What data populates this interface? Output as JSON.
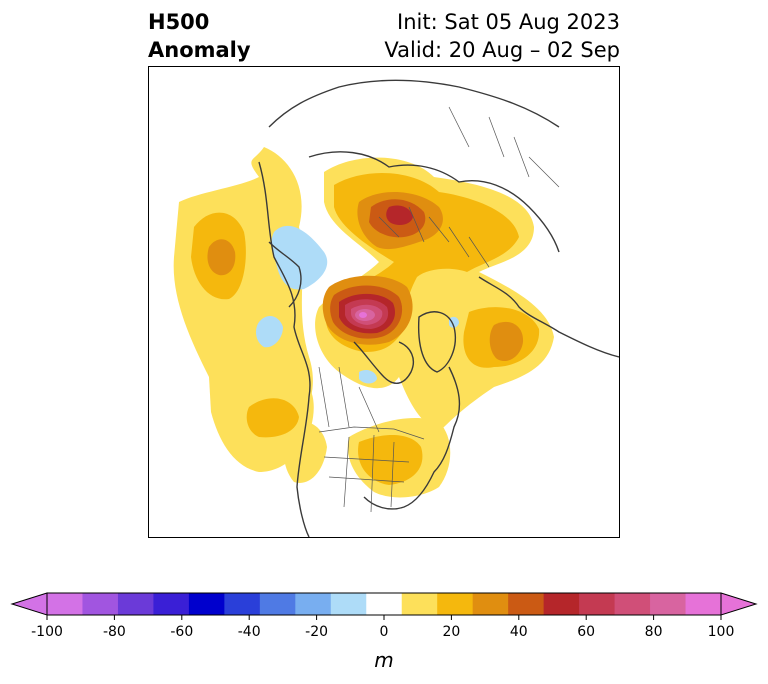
{
  "title": {
    "left_line1": "H500",
    "left_line2": "Anomaly",
    "right_line1": "Init: Sat 05 Aug 2023",
    "right_line2": "Valid: 20 Aug – 02 Sep"
  },
  "colorbar": {
    "unit": "m",
    "ticks": [
      "-100",
      "-80",
      "-60",
      "-40",
      "-20",
      "0",
      "20",
      "40",
      "60",
      "80",
      "100"
    ],
    "levels": [
      -100,
      -90,
      -80,
      -70,
      -60,
      -50,
      -40,
      -30,
      -20,
      -10,
      10,
      20,
      30,
      40,
      50,
      60,
      70,
      80,
      90,
      100
    ],
    "colors": [
      "#d372e6",
      "#a155e0",
      "#6b3ad8",
      "#3a1fd6",
      "#0000cd",
      "#2a3fd9",
      "#4f7ae4",
      "#78aef0",
      "#aedcf8",
      "#ffffff",
      "#fde05a",
      "#f5b80d",
      "#e08e10",
      "#cb5a14",
      "#b5262a",
      "#c43a52",
      "#d04f78",
      "#d864a0",
      "#e672d8"
    ],
    "under_color": "#d372e6",
    "over_color": "#e672d8"
  },
  "map": {
    "projection": "north-polar-stereographic",
    "anomaly_colors": {
      "yellow": "#fde05a",
      "gold": "#f5b80d",
      "orange": "#e08e10",
      "rust": "#cb5a14",
      "red": "#b5262a",
      "crimson": "#c43a52",
      "rose": "#d04f78",
      "pink": "#d864a0",
      "light_blue": "#aedcf8"
    }
  }
}
